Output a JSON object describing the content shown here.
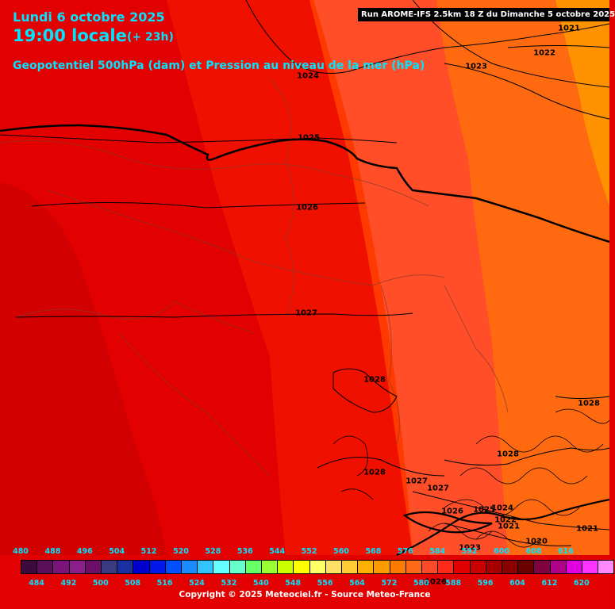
{
  "header": {
    "date": "Lundi 6 octobre 2025",
    "time": "19:00 locale",
    "lead": "(+ 23h)",
    "parameter": "Geopotentiel 500hPa (dam) et Pression au niveau de la mer (hPa)",
    "run": "Run AROME-IFS 2.5km 18 Z du Dimanche 5 octobre 2025"
  },
  "isobar_labels": [
    "1021",
    "1022",
    "1023",
    "1024",
    "1025",
    "1026",
    "1027",
    "1028",
    "1028",
    "1028",
    "1028",
    "1027",
    "1027",
    "1026",
    "1025",
    "1024",
    "1022",
    "1021",
    "1020",
    "1021",
    "1023",
    "1026"
  ],
  "legend": {
    "top_values": [
      "480",
      "488",
      "496",
      "504",
      "512",
      "520",
      "528",
      "536",
      "544",
      "552",
      "560",
      "568",
      "576",
      "584",
      "592",
      "600",
      "608",
      "616"
    ],
    "bottom_values": [
      "484",
      "492",
      "500",
      "508",
      "516",
      "524",
      "532",
      "540",
      "548",
      "556",
      "564",
      "572",
      "580",
      "588",
      "596",
      "604",
      "612",
      "620"
    ],
    "colors": [
      "#3d0a3d",
      "#5a0f5a",
      "#7a137a",
      "#8a1f8a",
      "#6b0f6b",
      "#3a3a80",
      "#1a2fa0",
      "#0000cc",
      "#0018e8",
      "#0050ff",
      "#1a8cff",
      "#33c4ff",
      "#66ffff",
      "#66ffcc",
      "#66ff66",
      "#99ff33",
      "#ccff00",
      "#ffff00",
      "#ffff66",
      "#ffe066",
      "#ffcc33",
      "#ffb000",
      "#ff9900",
      "#ff7a00",
      "#ff6a1a",
      "#ff4a2a",
      "#ff2a1a",
      "#e00000",
      "#c80000",
      "#a80000",
      "#8a0000",
      "#6a0000",
      "#800040",
      "#b0008a",
      "#e000e0",
      "#ff33ff",
      "#ff88ff"
    ],
    "copyright": "Copyright © 2025 Meteociel.fr - Source Meteo-France"
  }
}
